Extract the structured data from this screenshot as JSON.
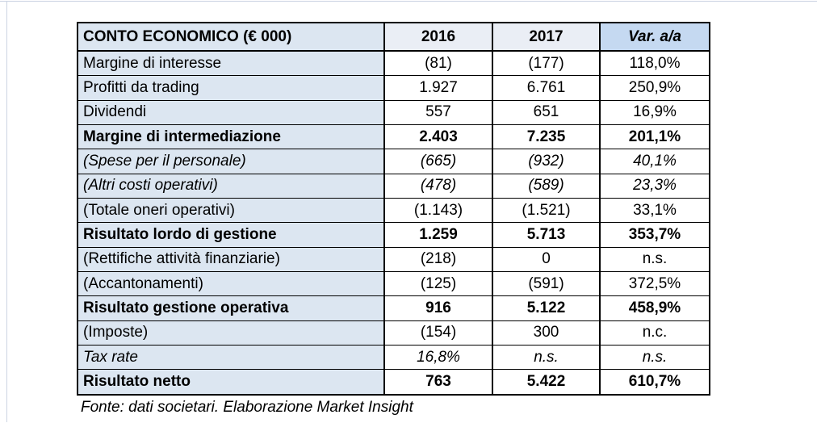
{
  "page": {
    "source_note": "Fonte: dati societari. Elaborazione Market Insight"
  },
  "table": {
    "title_column": "CONTO ECONOMICO (€ 000)",
    "columns": [
      "CONTO ECONOMICO (€ 000)",
      "2016",
      "2017",
      "Var. a/a"
    ],
    "rows": [
      {
        "label": "Margine di interesse",
        "y2016": "(81)",
        "y2017": "(177)",
        "var": "118,0%",
        "style": "normal"
      },
      {
        "label": "Profitti da trading",
        "y2016": "1.927",
        "y2017": "6.761",
        "var": "250,9%",
        "style": "normal"
      },
      {
        "label": "Dividendi",
        "y2016": "557",
        "y2017": "651",
        "var": "16,9%",
        "style": "normal"
      },
      {
        "label": "Margine di intermediazione",
        "y2016": "2.403",
        "y2017": "7.235",
        "var": "201,1%",
        "style": "bold"
      },
      {
        "label": "(Spese per il personale)",
        "y2016": "(665)",
        "y2017": "(932)",
        "var": "40,1%",
        "style": "italic"
      },
      {
        "label": "(Altri costi operativi)",
        "y2016": "(478)",
        "y2017": "(589)",
        "var": "23,3%",
        "style": "italic"
      },
      {
        "label": "(Totale oneri operativi)",
        "y2016": "(1.143)",
        "y2017": "(1.521)",
        "var": "33,1%",
        "style": "normal"
      },
      {
        "label": "Risultato lordo di gestione",
        "y2016": "1.259",
        "y2017": "5.713",
        "var": "353,7%",
        "style": "bold"
      },
      {
        "label": "(Rettifiche attività finanziarie)",
        "y2016": "(218)",
        "y2017": "0",
        "var": "n.s.",
        "style": "normal"
      },
      {
        "label": "(Accantonamenti)",
        "y2016": "(125)",
        "y2017": "(591)",
        "var": "372,5%",
        "style": "normal"
      },
      {
        "label": "Risultato gestione operativa",
        "y2016": "916",
        "y2017": "5.122",
        "var": "458,9%",
        "style": "bold"
      },
      {
        "label": "(Imposte)",
        "y2016": "(154)",
        "y2017": "300",
        "var": "n.c.",
        "style": "normal"
      },
      {
        "label": "Tax rate",
        "y2016": "16,8%",
        "y2017": "n.s.",
        "var": "n.s.",
        "style": "italic"
      },
      {
        "label": "Risultato netto",
        "y2016": "763",
        "y2017": "5.422",
        "var": "610,7%",
        "style": "bold"
      }
    ]
  },
  "colors": {
    "label_column_bg": "#dce6f1",
    "year_header_bg": "#eaeef5",
    "var_header_bg": "#c5d9f1",
    "border": "#000000",
    "background": "#ffffff"
  },
  "chart_data": {
    "type": "table",
    "title": "CONTO ECONOMICO (€ 000)",
    "columns": [
      "CONTO ECONOMICO (€ 000)",
      "2016",
      "2017",
      "Var. a/a"
    ],
    "rows": [
      [
        "Margine di interesse",
        "(81)",
        "(177)",
        "118,0%"
      ],
      [
        "Profitti da trading",
        "1.927",
        "6.761",
        "250,9%"
      ],
      [
        "Dividendi",
        "557",
        "651",
        "16,9%"
      ],
      [
        "Margine di intermediazione",
        "2.403",
        "7.235",
        "201,1%"
      ],
      [
        "(Spese per il personale)",
        "(665)",
        "(932)",
        "40,1%"
      ],
      [
        "(Altri costi operativi)",
        "(478)",
        "(589)",
        "23,3%"
      ],
      [
        "(Totale oneri operativi)",
        "(1.143)",
        "(1.521)",
        "33,1%"
      ],
      [
        "Risultato lordo di gestione",
        "1.259",
        "5.713",
        "353,7%"
      ],
      [
        "(Rettifiche attività finanziarie)",
        "(218)",
        "0",
        "n.s."
      ],
      [
        "(Accantonamenti)",
        "(125)",
        "(591)",
        "372,5%"
      ],
      [
        "Risultato gestione operativa",
        "916",
        "5.122",
        "458,9%"
      ],
      [
        "(Imposte)",
        "(154)",
        "300",
        "n.c."
      ],
      [
        "Tax rate",
        "16,8%",
        "n.s.",
        "n.s."
      ],
      [
        "Risultato netto",
        "763",
        "5.422",
        "610,7%"
      ]
    ],
    "source_note": "Fonte: dati societari. Elaborazione Market Insight"
  }
}
